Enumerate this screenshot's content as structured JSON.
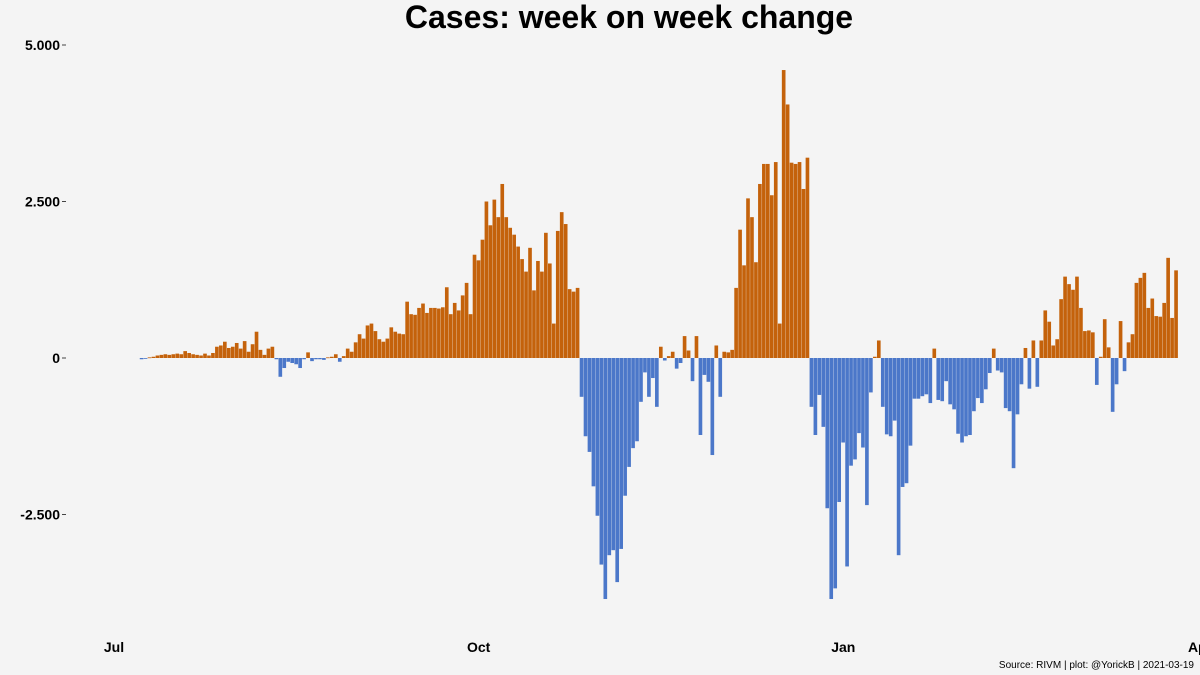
{
  "chart_data": {
    "type": "bar",
    "title": "Cases: week on week change",
    "xlabel": "",
    "ylabel": "",
    "ylim": [
      -4000,
      5000
    ],
    "y_ticks": [
      {
        "value": 5000,
        "label": "5.000"
      },
      {
        "value": 2500,
        "label": "2.500"
      },
      {
        "value": 0,
        "label": "0"
      },
      {
        "value": -2500,
        "label": "-2.500"
      }
    ],
    "x_ticks": [
      {
        "date": "2020-07-01",
        "label": "Jul"
      },
      {
        "date": "2020-10-01",
        "label": "Oct"
      },
      {
        "date": "2021-01-01",
        "label": "Jan"
      },
      {
        "date": "2021-04-01",
        "label": "Apr"
      }
    ],
    "xlim": [
      "2020-07-01",
      "2021-04-01"
    ],
    "colors": {
      "positive": "#c4620b",
      "negative": "#4b77c9"
    },
    "grid": false,
    "legend": "none",
    "x_start": "2020-07-08",
    "values": [
      -20,
      -10,
      10,
      20,
      40,
      50,
      60,
      50,
      60,
      70,
      60,
      110,
      80,
      60,
      50,
      40,
      70,
      40,
      80,
      180,
      200,
      260,
      160,
      180,
      240,
      150,
      270,
      100,
      220,
      420,
      130,
      50,
      150,
      180,
      -20,
      -300,
      -160,
      -60,
      -80,
      -100,
      -160,
      -20,
      90,
      -50,
      -20,
      -20,
      -30,
      10,
      20,
      60,
      -60,
      30,
      150,
      100,
      250,
      380,
      310,
      520,
      550,
      430,
      300,
      260,
      310,
      490,
      420,
      390,
      380,
      900,
      700,
      690,
      800,
      870,
      720,
      800,
      800,
      790,
      810,
      1130,
      700,
      880,
      760,
      1000,
      1200,
      700,
      1650,
      1560,
      1890,
      2500,
      2120,
      2530,
      2250,
      2780,
      2250,
      2080,
      1970,
      1780,
      1580,
      1380,
      1760,
      1080,
      1550,
      1380,
      2000,
      1510,
      550,
      2030,
      2330,
      2140,
      1100,
      1060,
      1120,
      -620,
      -1250,
      -1500,
      -2050,
      -2520,
      -3300,
      -3850,
      -3150,
      -3070,
      -3580,
      -3050,
      -2200,
      -1740,
      -1440,
      -1330,
      -700,
      -230,
      -620,
      -320,
      -780,
      180,
      -40,
      30,
      100,
      -170,
      -80,
      350,
      120,
      -370,
      350,
      -1230,
      -270,
      -380,
      -1550,
      200,
      -620,
      100,
      90,
      130,
      1120,
      2050,
      1480,
      2550,
      2250,
      1530,
      2780,
      3100,
      3100,
      2600,
      3130,
      550,
      4600,
      4050,
      3120,
      3100,
      3130,
      2700,
      3200,
      -780,
      -1230,
      -590,
      -1100,
      -2400,
      -3850,
      -3680,
      -2300,
      -1350,
      -3330,
      -1720,
      -1620,
      -1200,
      -1430,
      -2350,
      -550,
      20,
      280,
      -780,
      -1220,
      -1250,
      -1000,
      -3150,
      -2060,
      -2000,
      -1400,
      -650,
      -650,
      -610,
      -580,
      -720,
      150,
      -670,
      -690,
      -370,
      -740,
      -820,
      -1210,
      -1350,
      -1250,
      -1230,
      -850,
      -640,
      -720,
      -500,
      -240,
      150,
      -200,
      -230,
      -800,
      -850,
      -1760,
      -900,
      -420,
      160,
      -490,
      280,
      -460,
      280,
      760,
      580,
      200,
      300,
      940,
      1300,
      1180,
      1090,
      1300,
      800,
      430,
      440,
      410,
      -430,
      20,
      620,
      170,
      -860,
      -420,
      590,
      -210,
      250,
      380,
      1200,
      1280,
      1360,
      800,
      950,
      670,
      660,
      880,
      1600,
      640,
      1400
    ]
  },
  "caption": "Source: RIVM | plot: @YorickB |  2021-03-19"
}
